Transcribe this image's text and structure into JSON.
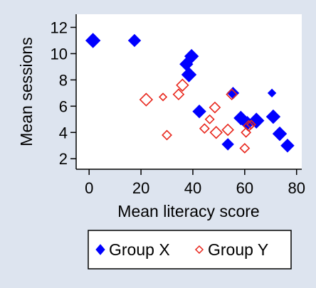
{
  "chart_data": {
    "type": "scatter",
    "title": "",
    "xlabel": "Mean literacy score",
    "ylabel": "Mean sessions",
    "xlim": [
      -5,
      82
    ],
    "ylim": [
      1.2,
      13
    ],
    "xticks": [
      0,
      20,
      40,
      60,
      80
    ],
    "yticks": [
      2,
      4,
      6,
      8,
      10,
      12
    ],
    "grid": false,
    "legend_position": "bottom",
    "series": [
      {
        "name": "Group X",
        "color": "#0000ff",
        "marker": "diamond-filled",
        "points": [
          {
            "x": 1.5,
            "y": 11.0,
            "size": 1.0
          },
          {
            "x": 17.5,
            "y": 11.0,
            "size": 0.85
          },
          {
            "x": 39.5,
            "y": 9.8,
            "size": 0.95
          },
          {
            "x": 37.5,
            "y": 9.2,
            "size": 0.9
          },
          {
            "x": 38.5,
            "y": 8.4,
            "size": 1.0
          },
          {
            "x": 42.5,
            "y": 5.6,
            "size": 0.9
          },
          {
            "x": 55.5,
            "y": 7.0,
            "size": 0.8
          },
          {
            "x": 58.5,
            "y": 5.1,
            "size": 0.95
          },
          {
            "x": 61.0,
            "y": 4.7,
            "size": 0.95
          },
          {
            "x": 64.5,
            "y": 4.9,
            "size": 1.05
          },
          {
            "x": 53.5,
            "y": 3.1,
            "size": 0.8
          },
          {
            "x": 70.5,
            "y": 7.0,
            "size": 0.55
          },
          {
            "x": 71.0,
            "y": 5.2,
            "size": 0.95
          },
          {
            "x": 73.5,
            "y": 3.9,
            "size": 0.95
          },
          {
            "x": 76.5,
            "y": 3.0,
            "size": 0.9
          }
        ]
      },
      {
        "name": "Group Y",
        "color": "#e8261c",
        "marker": "diamond-hollow",
        "points": [
          {
            "x": 22.0,
            "y": 6.5,
            "size": 0.95
          },
          {
            "x": 28.5,
            "y": 6.7,
            "size": 0.55
          },
          {
            "x": 30.0,
            "y": 3.8,
            "size": 0.7
          },
          {
            "x": 34.5,
            "y": 6.9,
            "size": 0.8
          },
          {
            "x": 36.0,
            "y": 7.6,
            "size": 0.9
          },
          {
            "x": 44.5,
            "y": 4.3,
            "size": 0.7
          },
          {
            "x": 46.5,
            "y": 5.0,
            "size": 0.65
          },
          {
            "x": 48.5,
            "y": 5.9,
            "size": 0.8
          },
          {
            "x": 49.0,
            "y": 4.0,
            "size": 0.9
          },
          {
            "x": 53.5,
            "y": 4.2,
            "size": 0.85
          },
          {
            "x": 55.0,
            "y": 6.9,
            "size": 0.8
          },
          {
            "x": 60.0,
            "y": 2.8,
            "size": 0.7
          },
          {
            "x": 60.5,
            "y": 4.0,
            "size": 0.7
          },
          {
            "x": 61.5,
            "y": 4.5,
            "size": 0.8
          },
          {
            "x": 62.5,
            "y": 4.6,
            "size": 0.65
          }
        ]
      }
    ]
  }
}
